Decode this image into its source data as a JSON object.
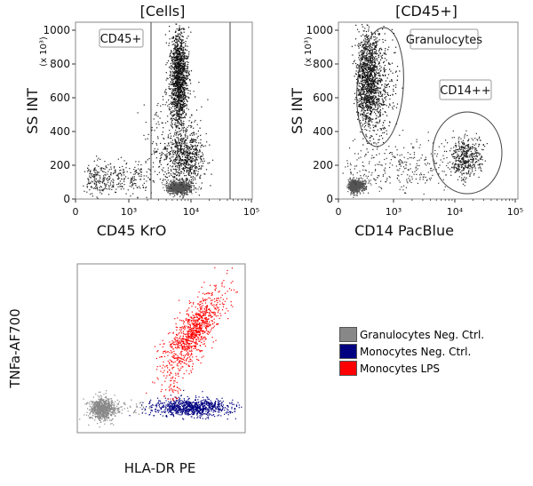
{
  "chart_data": [
    {
      "type": "scatter",
      "title": "[Cells]",
      "xlabel": "CD45 KrO",
      "ylabel": "SS INT",
      "yunit": "(x 10³)",
      "xscale": "log",
      "xticks": [
        "0",
        "10³",
        "10⁴",
        "10⁵"
      ],
      "yticks": [
        "0",
        "200",
        "400",
        "600",
        "800",
        "1000"
      ],
      "ylim": [
        0,
        1000
      ],
      "gates": [
        {
          "type": "range",
          "label": "CD45+",
          "x_from": 2300,
          "x_to": 45000
        }
      ],
      "populations": [
        {
          "x_center": 6300,
          "y_center": 700,
          "y_range": [
            400,
            1000
          ]
        },
        {
          "x_center": 6300,
          "y_center": 70
        },
        {
          "x_center": 8000,
          "y_center": 250
        },
        {
          "x_center": 700,
          "y_center": 120
        }
      ]
    },
    {
      "type": "scatter",
      "title": "[CD45+]",
      "xlabel": "CD14 PacBlue",
      "ylabel": "SS INT",
      "yunit": "(x 10³)",
      "xscale": "log",
      "xticks": [
        "0",
        "10³",
        "10⁴",
        "10⁵"
      ],
      "yticks": [
        "0",
        "200",
        "400",
        "600",
        "800",
        "1000"
      ],
      "ylim": [
        0,
        1000
      ],
      "gates": [
        {
          "type": "ellipse",
          "label": "Granulocytes"
        },
        {
          "type": "ellipse",
          "label": "CD14++"
        }
      ],
      "populations": [
        {
          "x_center": 560,
          "y_center": 700
        },
        {
          "x_center": 280,
          "y_center": 80
        },
        {
          "x_center": 15000,
          "y_center": 250
        }
      ]
    },
    {
      "type": "scatter",
      "xlabel": "HLA-DR PE",
      "ylabel": "TNFa-AF700",
      "series": [
        {
          "name": "Granulocytes Neg. Ctrl.",
          "color": "#888888"
        },
        {
          "name": "Monocytes Neg. Ctrl.",
          "color": "#000080"
        },
        {
          "name": "Monocytes LPS",
          "color": "#ff0000"
        }
      ],
      "legend": "right"
    }
  ]
}
